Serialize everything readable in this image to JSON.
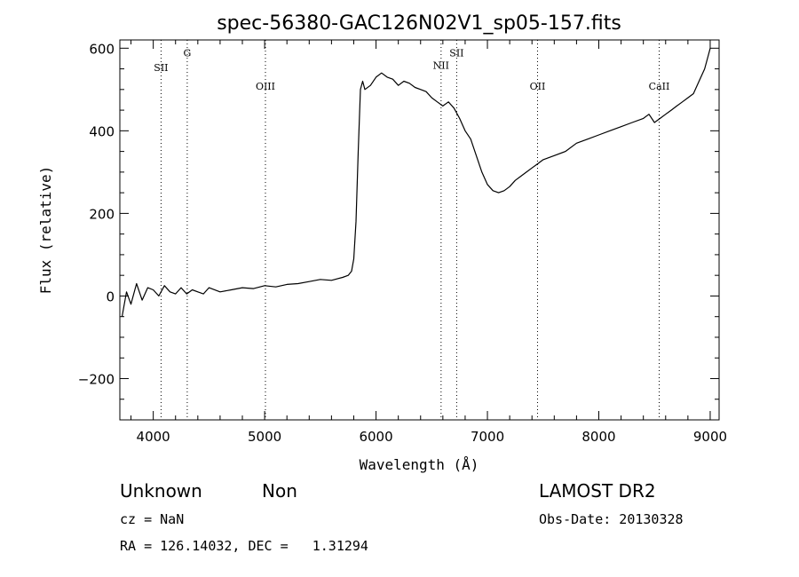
{
  "chart_data": {
    "type": "line",
    "title": "spec-56380-GAC126N02V1_sp05-157.fits",
    "xlabel": "Wavelength (Å)",
    "ylabel": "Flux (relative)",
    "xlim": [
      3700,
      9080
    ],
    "ylim": [
      -300,
      620
    ],
    "xticks": [
      4000,
      5000,
      6000,
      7000,
      8000,
      9000
    ],
    "yticks": [
      -200,
      0,
      200,
      400,
      600
    ],
    "grid": false,
    "series": [
      {
        "x": [
          3720,
          3760,
          3800,
          3850,
          3900,
          3950,
          4000,
          4050,
          4100,
          4150,
          4200,
          4250,
          4300,
          4350,
          4400,
          4450,
          4500,
          4600,
          4700,
          4800,
          4900,
          5000,
          5100,
          5200,
          5300,
          5400,
          5500,
          5600,
          5700,
          5750,
          5780,
          5800,
          5820,
          5840,
          5860,
          5880,
          5900,
          5950,
          6000,
          6050,
          6100,
          6150,
          6200,
          6250,
          6300,
          6350,
          6400,
          6450,
          6500,
          6550,
          6600,
          6650,
          6700,
          6750,
          6800,
          6850,
          6900,
          6950,
          7000,
          7050,
          7100,
          7150,
          7200,
          7250,
          7300,
          7350,
          7400,
          7450,
          7500,
          7600,
          7700,
          7800,
          7900,
          8000,
          8100,
          8200,
          8300,
          8400,
          8450,
          8500,
          8550,
          8600,
          8650,
          8700,
          8750,
          8800,
          8850,
          8900,
          8950,
          8980,
          9000
        ],
        "y": [
          -50,
          10,
          -20,
          30,
          -10,
          20,
          15,
          0,
          25,
          10,
          5,
          20,
          5,
          15,
          10,
          5,
          20,
          10,
          15,
          20,
          18,
          25,
          22,
          28,
          30,
          35,
          40,
          38,
          45,
          50,
          60,
          90,
          180,
          350,
          500,
          520,
          500,
          510,
          530,
          540,
          530,
          525,
          510,
          520,
          515,
          505,
          500,
          495,
          480,
          470,
          460,
          470,
          455,
          430,
          400,
          380,
          340,
          300,
          270,
          255,
          250,
          255,
          265,
          280,
          290,
          300,
          310,
          320,
          330,
          340,
          350,
          370,
          380,
          390,
          400,
          410,
          420,
          430,
          440,
          420,
          430,
          440,
          450,
          460,
          470,
          480,
          490,
          520,
          550,
          580,
          600
        ]
      }
    ],
    "annotations": [
      {
        "label": "SII",
        "x": 4070,
        "label_y": 545
      },
      {
        "label": "G",
        "x": 4305,
        "label_y": 580
      },
      {
        "label": "OIII",
        "x": 5007,
        "label_y": 500
      },
      {
        "label": "NII",
        "x": 6584,
        "label_y": 550
      },
      {
        "label": "SII",
        "x": 6724,
        "label_y": 580
      },
      {
        "label": "OII",
        "x": 7450,
        "label_y": 500
      },
      {
        "label": "CaII",
        "x": 8542,
        "label_y": 500
      }
    ]
  },
  "info": {
    "class_text": "Unknown",
    "subclass_text": "Non",
    "survey_text": "LAMOST DR2",
    "cz_text": "cz = NaN",
    "obs_date_text": "Obs-Date: 20130328",
    "radec_text": "RA = 126.14032, DEC =   1.31294"
  }
}
